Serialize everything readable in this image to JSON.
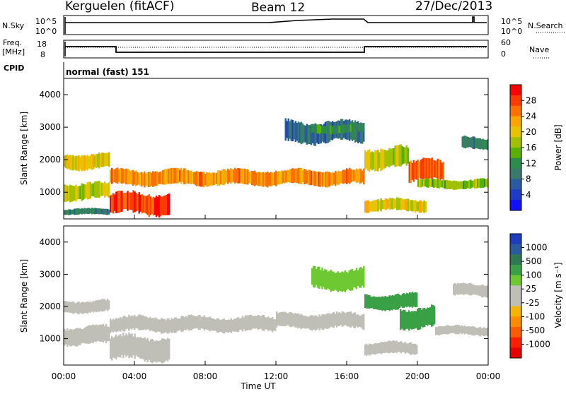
{
  "header": {
    "station": "Kerguelen (fitACF)",
    "beam": "Beam 12",
    "date": "27/Dec/2013"
  },
  "params": {
    "nsky_label": "N.Sky",
    "nsearch_label": "N.Search",
    "freq_label_line1": "Freq.",
    "freq_label_line2": "[MHz]",
    "nave_label": "Nave",
    "cpid_label": "CPID",
    "cpid_value": "normal (fast) 151",
    "nsky_ticks": [
      "10^5",
      "10^0"
    ],
    "nsearch_ticks": [
      "10^5",
      "10^0"
    ],
    "freq_ticks": [
      "18",
      "8"
    ],
    "nave_ticks": [
      "60",
      "0"
    ]
  },
  "colorbars": {
    "power": {
      "label": "Power [dB]",
      "ticks": [
        "28",
        "24",
        "20",
        "16",
        "12",
        "8",
        "4"
      ],
      "colors": [
        "#ff0000",
        "#ff3a00",
        "#ff7000",
        "#ffa500",
        "#e8c400",
        "#a0c000",
        "#58b000",
        "#2c8c4c",
        "#3a7a6a",
        "#2a5aa0",
        "#1e3cc8",
        "#1010ff"
      ]
    },
    "velocity": {
      "label": "Velocity [m s⁻¹]",
      "ticks": [
        "1000",
        "500",
        "100",
        "25",
        "-25",
        "-100",
        "-500",
        "-1000"
      ],
      "colors": [
        "#1e3cc0",
        "#2a5aa0",
        "#2f7a52",
        "#3aa046",
        "#6ec832",
        "#bfbfb7",
        "#bfbfb7",
        "#f5b400",
        "#ff8c00",
        "#ff5a00",
        "#ff1e00",
        "#e80000"
      ]
    }
  },
  "chart_data": [
    {
      "type": "heatmap",
      "name": "power",
      "ylabel": "Slant Range [km]",
      "ylim": [
        180,
        4500
      ],
      "yticks": [
        "4000",
        "3000",
        "2000",
        "1000"
      ],
      "xlim": [
        "00:00",
        "24:00"
      ],
      "bands": [
        {
          "x": [
            0,
            2.6
          ],
          "y": [
            1700,
            2200
          ],
          "value": 20
        },
        {
          "x": [
            0,
            2.6
          ],
          "y": [
            750,
            1300
          ],
          "value": 18
        },
        {
          "x": [
            0,
            2.6
          ],
          "y": [
            300,
            500
          ],
          "value": 10
        },
        {
          "x": [
            2.6,
            6
          ],
          "y": [
            300,
            1000
          ],
          "value": 28
        },
        {
          "x": [
            2.6,
            17
          ],
          "y": [
            1200,
            1700
          ],
          "value": 24
        },
        {
          "x": [
            12.5,
            17
          ],
          "y": [
            2500,
            3200
          ],
          "value": 8
        },
        {
          "x": [
            14,
            17
          ],
          "y": [
            2800,
            3100
          ],
          "value": 12
        },
        {
          "x": [
            17,
            19.5
          ],
          "y": [
            1700,
            2400
          ],
          "value": 18
        },
        {
          "x": [
            17,
            20.5
          ],
          "y": [
            400,
            800
          ],
          "value": 20
        },
        {
          "x": [
            19.5,
            21.5
          ],
          "y": [
            1300,
            2000
          ],
          "value": 26
        },
        {
          "x": [
            20,
            24
          ],
          "y": [
            1100,
            1400
          ],
          "value": 16
        },
        {
          "x": [
            22.5,
            24
          ],
          "y": [
            2300,
            2700
          ],
          "value": 10
        }
      ]
    },
    {
      "type": "heatmap",
      "name": "velocity",
      "ylabel": "Slant Range [km]",
      "ylim": [
        180,
        4500
      ],
      "yticks": [
        "4000",
        "3000",
        "2000",
        "1000"
      ],
      "xlabel": "Time UT",
      "xlim": [
        "00:00",
        "24:00"
      ],
      "xticks": [
        "00:00",
        "04:00",
        "08:00",
        "12:00",
        "16:00",
        "20:00",
        "00:00"
      ],
      "bands": [
        {
          "x": [
            0,
            2.6
          ],
          "y": [
            1800,
            2200
          ],
          "value": 0
        },
        {
          "x": [
            0,
            2.6
          ],
          "y": [
            800,
            1400
          ],
          "value": 0
        },
        {
          "x": [
            2.6,
            12
          ],
          "y": [
            1200,
            1700
          ],
          "value": 0
        },
        {
          "x": [
            2.6,
            6
          ],
          "y": [
            300,
            1100
          ],
          "value": 0
        },
        {
          "x": [
            12,
            17
          ],
          "y": [
            1300,
            1800
          ],
          "value": 0
        },
        {
          "x": [
            14,
            17
          ],
          "y": [
            2500,
            3200
          ],
          "value": 50
        },
        {
          "x": [
            17,
            20
          ],
          "y": [
            1900,
            2400
          ],
          "value": 200
        },
        {
          "x": [
            19,
            21
          ],
          "y": [
            1300,
            2000
          ],
          "value": 300
        },
        {
          "x": [
            17,
            20
          ],
          "y": [
            500,
            900
          ],
          "value": 0
        },
        {
          "x": [
            21,
            24
          ],
          "y": [
            1100,
            1400
          ],
          "value": 0
        },
        {
          "x": [
            22,
            24
          ],
          "y": [
            2300,
            2700
          ],
          "value": 0
        }
      ]
    }
  ]
}
